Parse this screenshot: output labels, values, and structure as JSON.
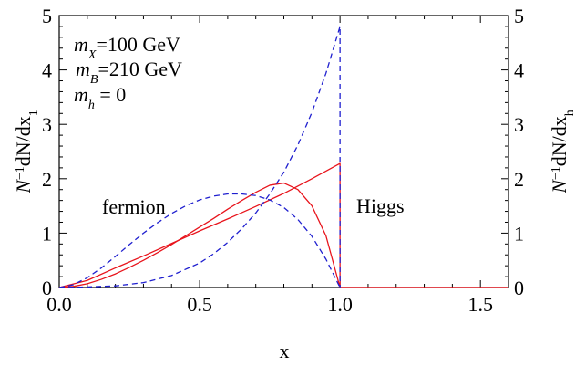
{
  "chart_data": {
    "type": "line",
    "title": "",
    "xlabel": "x",
    "ylabel_left": "N^{-1}dN/dx_1",
    "ylabel_right": "N^{-1}dN/dx_h",
    "xlim": [
      0,
      1.6
    ],
    "ylim": [
      0,
      5
    ],
    "grid": false,
    "x_ticks": [
      {
        "value": 0.0,
        "label": "0.0"
      },
      {
        "value": 0.5,
        "label": "0.5"
      },
      {
        "value": 1.0,
        "label": "1.0"
      },
      {
        "value": 1.5,
        "label": "1.5"
      }
    ],
    "y_ticks": [
      {
        "value": 0,
        "label": "0"
      },
      {
        "value": 1,
        "label": "1"
      },
      {
        "value": 2,
        "label": "2"
      },
      {
        "value": 3,
        "label": "3"
      },
      {
        "value": 4,
        "label": "4"
      },
      {
        "value": 5,
        "label": "5"
      }
    ],
    "annotations": {
      "params": [
        {
          "sym": "m",
          "sub": "X",
          "rest": "=100 GeV"
        },
        {
          "sym": "m",
          "sub": "B",
          "rest": "=210 GeV"
        },
        {
          "sym": "m",
          "sub": "h",
          "rest": " = 0"
        }
      ],
      "fermion": "fermion",
      "higgs": "Higgs"
    },
    "colors": {
      "red": "#e8141c",
      "blue": "#1f1fcf"
    },
    "series": [
      {
        "color": "#e8141c",
        "dash": "solid",
        "x": [
          0,
          0.05,
          0.1,
          0.15,
          0.2,
          0.25,
          0.3,
          0.35,
          0.4,
          0.45,
          0.5,
          0.55,
          0.6,
          0.65,
          0.7,
          0.75,
          0.8,
          0.85,
          0.9,
          0.95,
          1.0,
          1.0,
          1.6
        ],
        "y": [
          0,
          0.02,
          0.07,
          0.15,
          0.25,
          0.37,
          0.5,
          0.64,
          0.79,
          0.95,
          1.11,
          1.27,
          1.44,
          1.6,
          1.75,
          1.88,
          1.92,
          1.8,
          1.5,
          0.95,
          0,
          0,
          0
        ]
      },
      {
        "color": "#e8141c",
        "dash": "solid",
        "x": [
          0,
          0.1,
          0.2,
          0.3,
          0.4,
          0.5,
          0.6,
          0.7,
          0.8,
          0.9,
          1.0,
          1.0,
          1.6
        ],
        "y": [
          0,
          0.13,
          0.36,
          0.58,
          0.81,
          1.04,
          1.26,
          1.49,
          1.73,
          2.0,
          2.28,
          0,
          0
        ]
      },
      {
        "color": "#1f1fcf",
        "dash": "dashed",
        "x": [
          0,
          0.05,
          0.1,
          0.15,
          0.2,
          0.25,
          0.3,
          0.35,
          0.4,
          0.45,
          0.5,
          0.55,
          0.6,
          0.65,
          0.7,
          0.75,
          0.8,
          0.85,
          0.9,
          0.95,
          1.0
        ],
        "y": [
          0,
          0.05,
          0.18,
          0.36,
          0.57,
          0.79,
          1.0,
          1.19,
          1.36,
          1.5,
          1.61,
          1.68,
          1.72,
          1.72,
          1.69,
          1.61,
          1.47,
          1.25,
          0.94,
          0.52,
          0
        ]
      },
      {
        "color": "#1f1fcf",
        "dash": "dashed",
        "x": [
          0,
          0.1,
          0.2,
          0.3,
          0.4,
          0.5,
          0.55,
          0.6,
          0.65,
          0.7,
          0.75,
          0.8,
          0.85,
          0.9,
          0.95,
          1.0,
          1.0
        ],
        "y": [
          0,
          0.01,
          0.03,
          0.09,
          0.22,
          0.45,
          0.62,
          0.83,
          1.08,
          1.37,
          1.72,
          2.12,
          2.62,
          3.22,
          3.94,
          4.8,
          0
        ]
      }
    ]
  }
}
